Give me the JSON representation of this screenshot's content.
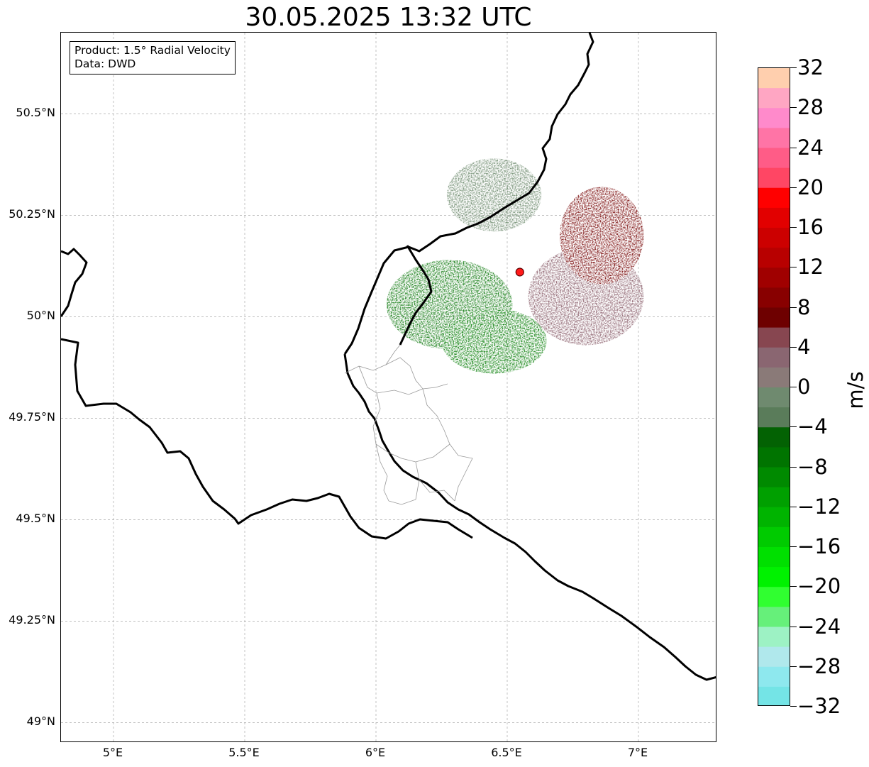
{
  "title": "30.05.2025 13:32 UTC",
  "info_box": {
    "product": "Product: 1.5° Radial Velocity",
    "source": "Data: DWD"
  },
  "map": {
    "extent": {
      "lon_min": 4.8,
      "lon_max": 7.3,
      "lat_min": 48.95,
      "lat_max": 50.7
    },
    "gridlines": true,
    "lat_ticks": [
      {
        "value": 50.5,
        "label": "50.5°N"
      },
      {
        "value": 50.25,
        "label": "50.25°N"
      },
      {
        "value": 50.0,
        "label": "50°N"
      },
      {
        "value": 49.75,
        "label": "49.75°N"
      },
      {
        "value": 49.5,
        "label": "49.5°N"
      },
      {
        "value": 49.25,
        "label": "49.25°N"
      },
      {
        "value": 49.0,
        "label": "49°N"
      }
    ],
    "lon_ticks": [
      {
        "value": 5.0,
        "label": "5°E"
      },
      {
        "value": 5.5,
        "label": "5.5°E"
      },
      {
        "value": 6.0,
        "label": "6°E"
      },
      {
        "value": 6.5,
        "label": "6.5°E"
      },
      {
        "value": 7.0,
        "label": "7°E"
      }
    ],
    "radar_site": {
      "lon": 6.548,
      "lat": 50.11,
      "color": "#ff1a1a"
    },
    "velocity_regions": [
      {
        "name": "inbound-strong-west",
        "color": "#127a12",
        "lon_center": 6.28,
        "lat_center": 50.03,
        "radius_lon": 0.24,
        "radius_lat": 0.11
      },
      {
        "name": "inbound-south",
        "color": "#0d7f0d",
        "lon_center": 6.45,
        "lat_center": 49.94,
        "radius_lon": 0.2,
        "radius_lat": 0.08
      },
      {
        "name": "near-zero-north",
        "color": "#6d8a6d",
        "lon_center": 6.45,
        "lat_center": 50.3,
        "radius_lon": 0.18,
        "radius_lat": 0.09
      },
      {
        "name": "outbound-weak-east",
        "color": "#8a5e6a",
        "lon_center": 6.8,
        "lat_center": 50.05,
        "radius_lon": 0.22,
        "radius_lat": 0.12
      },
      {
        "name": "outbound-strong-northeast",
        "color": "#7a0d0d",
        "lon_center": 6.86,
        "lat_center": 50.2,
        "radius_lon": 0.16,
        "radius_lat": 0.12
      }
    ]
  },
  "colorbar": {
    "unit": "m/s",
    "min": -32,
    "max": 32,
    "tick_labels": [
      "32",
      "28",
      "24",
      "20",
      "16",
      "12",
      "8",
      "4",
      "0",
      "−4",
      "−8",
      "−12",
      "−16",
      "−20",
      "−24",
      "−28",
      "−32"
    ],
    "colors_top_to_bottom": [
      "#ffcfae",
      "#ffa6c3",
      "#ff8acb",
      "#ff74a6",
      "#ff5c87",
      "#ff4664",
      "#ff0000",
      "#e20000",
      "#cc0000",
      "#b80000",
      "#a00000",
      "#880000",
      "#6e0000",
      "#874650",
      "#8a6671",
      "#8a7a78",
      "#6f8a6f",
      "#5a7c5a",
      "#036203",
      "#007400",
      "#008a00",
      "#00a000",
      "#00b400",
      "#00cb00",
      "#00e000",
      "#00f200",
      "#30ff30",
      "#66f07a",
      "#9df2c4",
      "#b0e8ec",
      "#8ee8ee",
      "#74e4e6"
    ]
  }
}
